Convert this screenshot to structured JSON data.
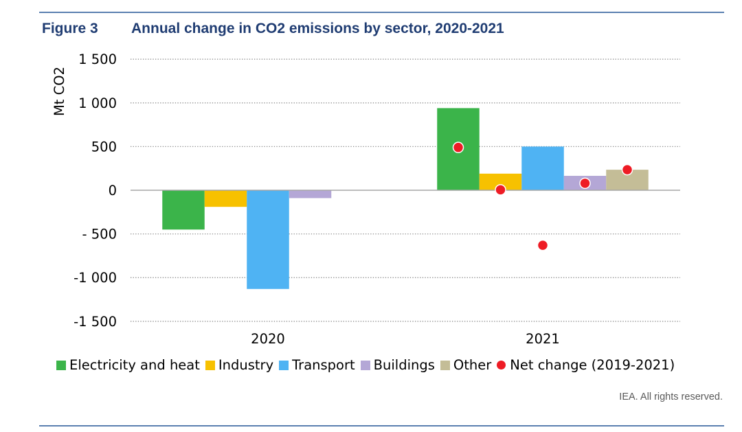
{
  "header": {
    "figure_label": "Figure 3",
    "title": "Annual change in CO2 emissions by sector, 2020-2021"
  },
  "credit": "IEA. All rights reserved.",
  "colors": {
    "Electricity and heat": "#3bb44a",
    "Industry": "#f7c100",
    "Transport": "#4fb3f3",
    "Buildings": "#b4a7d6",
    "Other": "#c4bd97",
    "Net change (2019-2021)": "#ee1c25",
    "rule": "#5a7fb0",
    "title": "#1f3c72"
  },
  "chart_data": {
    "type": "bar",
    "title": "Annual change in CO2 emissions by sector, 2020-2021",
    "ylabel": "Mt CO2",
    "xlabel": "",
    "ylim": [
      -1500,
      1500
    ],
    "yticks": [
      1500,
      1000,
      500,
      0,
      -500,
      -1000,
      -1500
    ],
    "ytick_labels": [
      "1 500",
      "1 000",
      "500",
      "0",
      "- 500",
      "-1 000",
      "-1 500"
    ],
    "grid": "horizontal dotted",
    "legend_position": "bottom",
    "categories": [
      "2020",
      "2021"
    ],
    "series": [
      {
        "name": "Electricity and heat",
        "values": [
          -450,
          940
        ]
      },
      {
        "name": "Industry",
        "values": [
          -190,
          190
        ]
      },
      {
        "name": "Transport",
        "values": [
          -1130,
          500
        ]
      },
      {
        "name": "Buildings",
        "values": [
          -90,
          165
        ]
      },
      {
        "name": "Other",
        "values": [
          null,
          235
        ]
      }
    ],
    "markers": {
      "name": "Net change (2019-2021)",
      "category": "2021",
      "points": [
        {
          "series": "Electricity and heat",
          "value": 490
        },
        {
          "series": "Industry",
          "value": 5
        },
        {
          "series": "Transport",
          "value": -630
        },
        {
          "series": "Buildings",
          "value": 80
        },
        {
          "series": "Other",
          "value": 235
        }
      ]
    }
  }
}
